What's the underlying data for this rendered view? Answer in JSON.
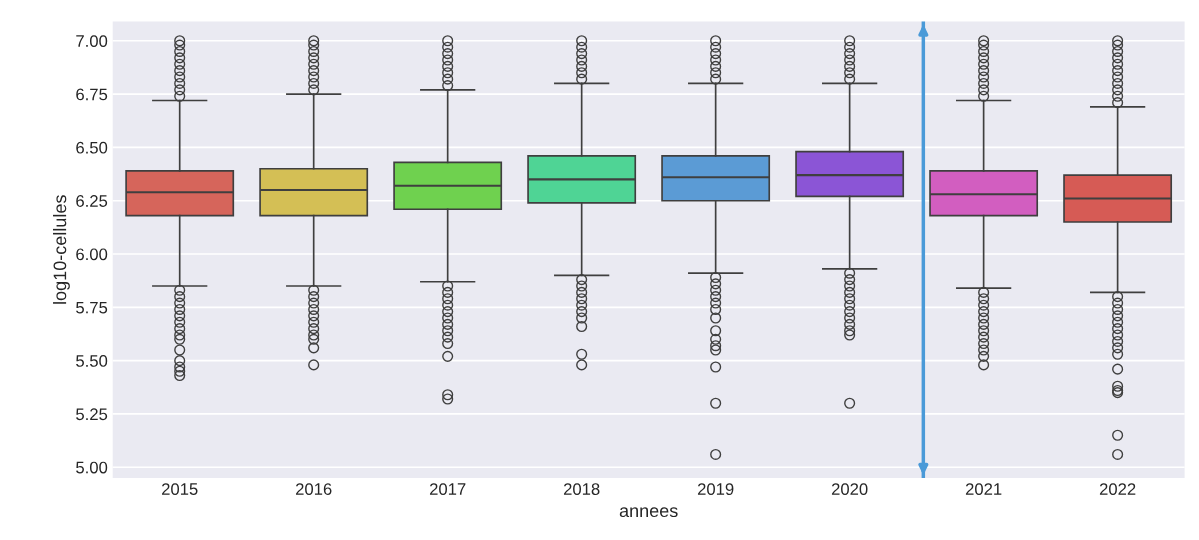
{
  "chart_data": {
    "type": "box",
    "xlabel": "annees",
    "ylabel": "log10-cellules",
    "x": [
      2015,
      2016,
      2017,
      2018,
      2019,
      2020,
      2021,
      2022
    ],
    "xlim": [
      2014.5,
      2022.5
    ],
    "xticks": [
      2015,
      2016,
      2017,
      2018,
      2019,
      2020,
      2021,
      2022
    ],
    "ref_lines": [
      {
        "axis": "x",
        "value": 2020.55,
        "color": "#4a9ad8",
        "line_style": "solid"
      }
    ],
    "colors": [
      "#d6655b",
      "#d4bf55",
      "#6fd14f",
      "#4fd495",
      "#5b9bd5",
      "#8b55d6",
      "#d25ec0",
      "#d65b55"
    ],
    "ylim": [
      4.95,
      7.09
    ],
    "yticks": [
      {
        "value": 5.0,
        "label": "5.00"
      },
      {
        "value": 5.25,
        "label": "5.25"
      },
      {
        "value": 5.5,
        "label": "5.50"
      },
      {
        "value": 5.75,
        "label": "5.75"
      },
      {
        "value": 6.0,
        "label": "6.00"
      },
      {
        "value": 6.25,
        "label": "6.25"
      },
      {
        "value": 6.5,
        "label": "6.50"
      },
      {
        "value": 6.75,
        "label": "6.75"
      },
      {
        "value": 7.0,
        "label": "7.00"
      }
    ],
    "grid": "y",
    "boxes": [
      {
        "low": 5.85,
        "q1": 6.18,
        "median": 6.29,
        "q3": 6.39,
        "high": 6.72,
        "outliers": [
          6.74,
          6.77,
          6.8,
          6.83,
          6.86,
          6.89,
          6.92,
          6.95,
          6.98,
          7.0,
          5.83,
          5.8,
          5.77,
          5.74,
          5.71,
          5.68,
          5.65,
          5.62,
          5.6,
          5.55,
          5.5,
          5.47,
          5.45,
          5.43
        ]
      },
      {
        "low": 5.85,
        "q1": 6.18,
        "median": 6.3,
        "q3": 6.4,
        "high": 6.75,
        "outliers": [
          6.77,
          6.8,
          6.83,
          6.86,
          6.89,
          6.92,
          6.95,
          6.98,
          7.0,
          5.83,
          5.8,
          5.77,
          5.74,
          5.71,
          5.68,
          5.65,
          5.62,
          5.6,
          5.56,
          5.48
        ]
      },
      {
        "low": 5.87,
        "q1": 6.21,
        "median": 6.32,
        "q3": 6.43,
        "high": 6.77,
        "outliers": [
          6.79,
          6.82,
          6.85,
          6.88,
          6.91,
          6.94,
          6.97,
          7.0,
          5.85,
          5.82,
          5.79,
          5.76,
          5.73,
          5.7,
          5.67,
          5.64,
          5.61,
          5.58,
          5.52,
          5.34,
          5.32
        ]
      },
      {
        "low": 5.9,
        "q1": 6.24,
        "median": 6.35,
        "q3": 6.46,
        "high": 6.8,
        "outliers": [
          6.82,
          6.85,
          6.88,
          6.91,
          6.94,
          6.97,
          7.0,
          5.88,
          5.85,
          5.82,
          5.79,
          5.76,
          5.73,
          5.7,
          5.66,
          5.53,
          5.48
        ]
      },
      {
        "low": 5.91,
        "q1": 6.25,
        "median": 6.36,
        "q3": 6.46,
        "high": 6.8,
        "outliers": [
          6.82,
          6.85,
          6.88,
          6.91,
          6.94,
          6.97,
          7.0,
          5.89,
          5.86,
          5.83,
          5.8,
          5.77,
          5.74,
          5.7,
          5.64,
          5.6,
          5.57,
          5.55,
          5.47,
          5.3,
          5.06
        ]
      },
      {
        "low": 5.93,
        "q1": 6.27,
        "median": 6.37,
        "q3": 6.48,
        "high": 6.8,
        "outliers": [
          6.82,
          6.85,
          6.88,
          6.91,
          6.94,
          6.97,
          7.0,
          5.91,
          5.88,
          5.85,
          5.82,
          5.79,
          5.76,
          5.73,
          5.7,
          5.67,
          5.64,
          5.62,
          5.3
        ]
      },
      {
        "low": 5.84,
        "q1": 6.18,
        "median": 6.28,
        "q3": 6.39,
        "high": 6.72,
        "outliers": [
          6.74,
          6.77,
          6.8,
          6.83,
          6.86,
          6.89,
          6.92,
          6.95,
          6.98,
          7.0,
          5.82,
          5.79,
          5.76,
          5.73,
          5.7,
          5.67,
          5.64,
          5.61,
          5.58,
          5.55,
          5.52,
          5.48
        ]
      },
      {
        "low": 5.82,
        "q1": 6.15,
        "median": 6.26,
        "q3": 6.37,
        "high": 6.69,
        "outliers": [
          6.71,
          6.74,
          6.77,
          6.8,
          6.83,
          6.86,
          6.89,
          6.92,
          6.95,
          6.98,
          7.0,
          5.8,
          5.77,
          5.74,
          5.71,
          5.68,
          5.65,
          5.62,
          5.59,
          5.56,
          5.53,
          5.46,
          5.38,
          5.36,
          5.35,
          5.15,
          5.06
        ]
      }
    ]
  }
}
